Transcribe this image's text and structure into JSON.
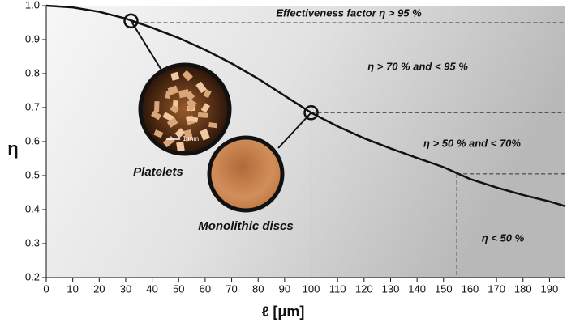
{
  "chart_data": {
    "type": "line",
    "y_label": "η",
    "x_label": "ℓ [μm]",
    "x": [
      0,
      10,
      20,
      30,
      40,
      50,
      60,
      70,
      80,
      90,
      100,
      110,
      120,
      130,
      140,
      150,
      160,
      170,
      180,
      190,
      196
    ],
    "series": [
      {
        "color": "#111111",
        "values": [
          1.0,
          0.995,
          0.982,
          0.962,
          0.935,
          0.905,
          0.87,
          0.83,
          0.785,
          0.735,
          0.685,
          0.645,
          0.61,
          0.58,
          0.552,
          0.525,
          0.49,
          0.465,
          0.443,
          0.424,
          0.41
        ]
      }
    ],
    "highlight_points": [
      {
        "x": 32,
        "y": 0.955
      },
      {
        "x": 100,
        "y": 0.685
      }
    ],
    "thresholds": [
      {
        "x": 32,
        "y": 0.95
      },
      {
        "x": 100,
        "y": 0.685
      },
      {
        "x": 155,
        "y": 0.505
      }
    ],
    "region_labels": [
      "Effectiveness factor η > 95 %",
      "η > 70 % and < 95 %",
      "η  > 50 % and < 70%",
      "η < 50 %"
    ],
    "image_labels": [
      "Platelets",
      "Monolithic discs",
      "1 mm"
    ],
    "xlim": [
      0,
      196
    ],
    "ylim": [
      0.2,
      1.0
    ],
    "xticks": [
      0,
      10,
      20,
      30,
      40,
      50,
      60,
      70,
      80,
      90,
      100,
      110,
      120,
      130,
      140,
      150,
      160,
      170,
      180,
      190
    ],
    "yticks": [
      0.2,
      0.3,
      0.4,
      0.5,
      0.6,
      0.7,
      0.8,
      0.9,
      {
        "value": 1,
        "label": "1.0"
      }
    ]
  }
}
